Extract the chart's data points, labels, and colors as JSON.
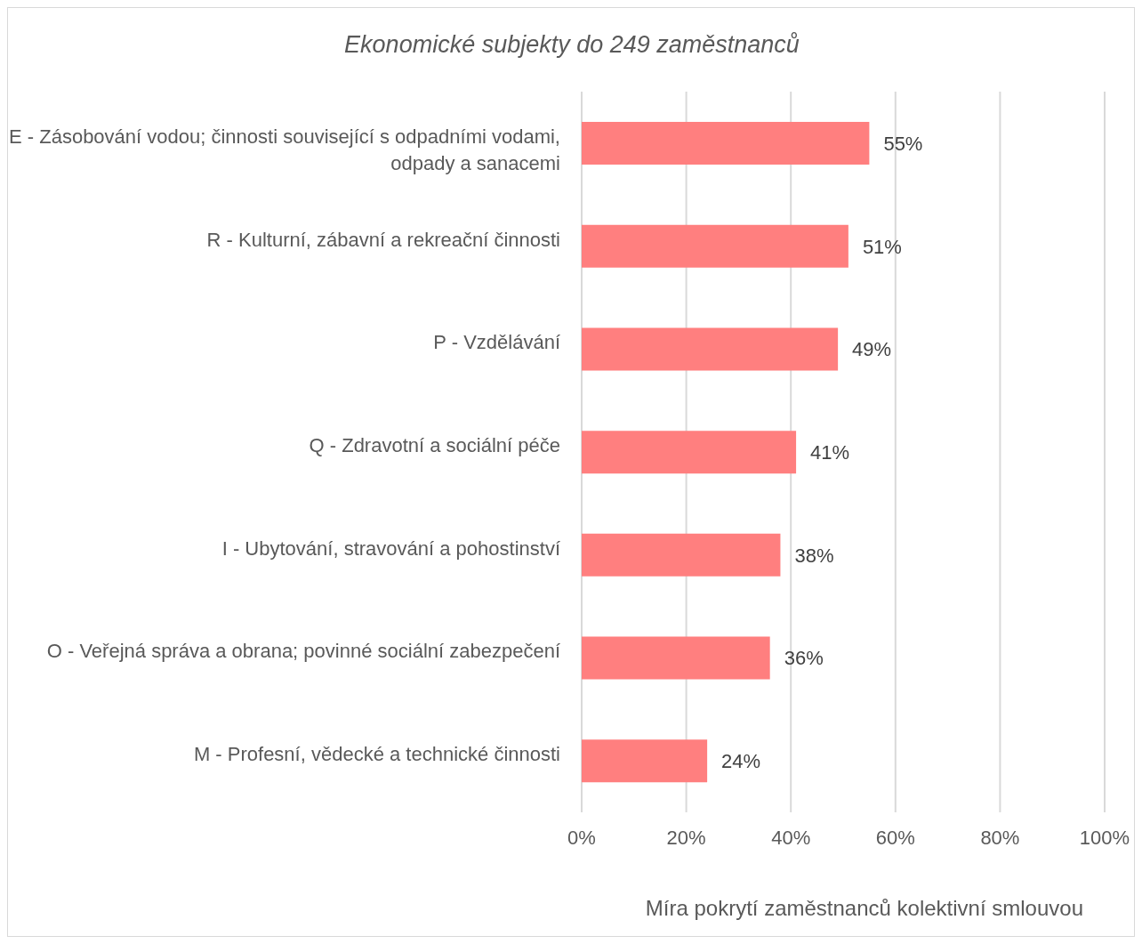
{
  "chart_data": {
    "type": "bar",
    "orientation": "horizontal",
    "title": "Ekonomické subjekty do 249 zaměstnanců",
    "xlabel": "Míra pokrytí zaměstnanců kolektivní smlouvou",
    "categories": [
      "E - Zásobování vodou; činnosti související s odpadními vodami, odpady a sanacemi",
      "R - Kulturní, zábavní a rekreační činnosti",
      "P - Vzdělávání",
      "Q - Zdravotní a sociální péče",
      "I - Ubytování, stravování a pohostinství",
      "O - Veřejná správa a obrana; povinné sociální zabezpečení",
      "M - Profesní, vědecké a technické činnosti"
    ],
    "values": [
      55,
      51,
      49,
      41,
      38,
      36,
      24
    ],
    "value_labels": [
      "55%",
      "51%",
      "49%",
      "41%",
      "38%",
      "36%",
      "24%"
    ],
    "color": "#ff7f7f",
    "xlim": [
      0,
      100
    ],
    "xticks": [
      {
        "value": 0,
        "label": "0%"
      },
      {
        "value": 20,
        "label": "20%"
      },
      {
        "value": 40,
        "label": "40%"
      },
      {
        "value": 60,
        "label": "60%"
      },
      {
        "value": 80,
        "label": "80%"
      },
      {
        "value": 100,
        "label": "100%"
      }
    ],
    "grid": "x"
  }
}
